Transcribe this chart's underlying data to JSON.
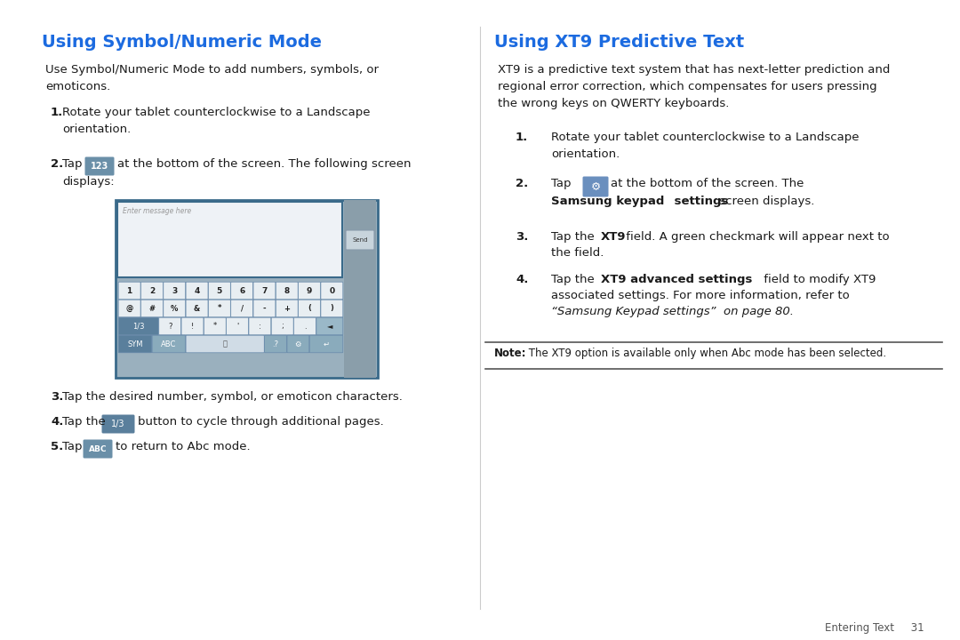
{
  "bg_color": "#ffffff",
  "heading_color": "#1c6be0",
  "text_color": "#1a1a1a",
  "note_bg": "#f8f8f8",
  "left_heading": "Using Symbol/Numeric Mode",
  "right_heading": "Using XT9 Predictive Text",
  "footer_text": "Entering Text     31",
  "note_text": " The XT9 option is available only when Abc mode has been selected.",
  "note_bold": "Note:",
  "btn123_color": "#6a8fa8",
  "btn_13_color": "#5a7f9c",
  "btn_abc_color": "#6a8fa8",
  "gear_btn_color": "#6a8fbe",
  "kbd_border": "#3a6a8a",
  "kbd_bg": "#9ab0be",
  "kbd_key_light": "#e8eef2",
  "kbd_key_dark": "#8aabbc",
  "kbd_text_area_bg": "#eef2f6",
  "kbd_side_bg": "#8a9eaa"
}
